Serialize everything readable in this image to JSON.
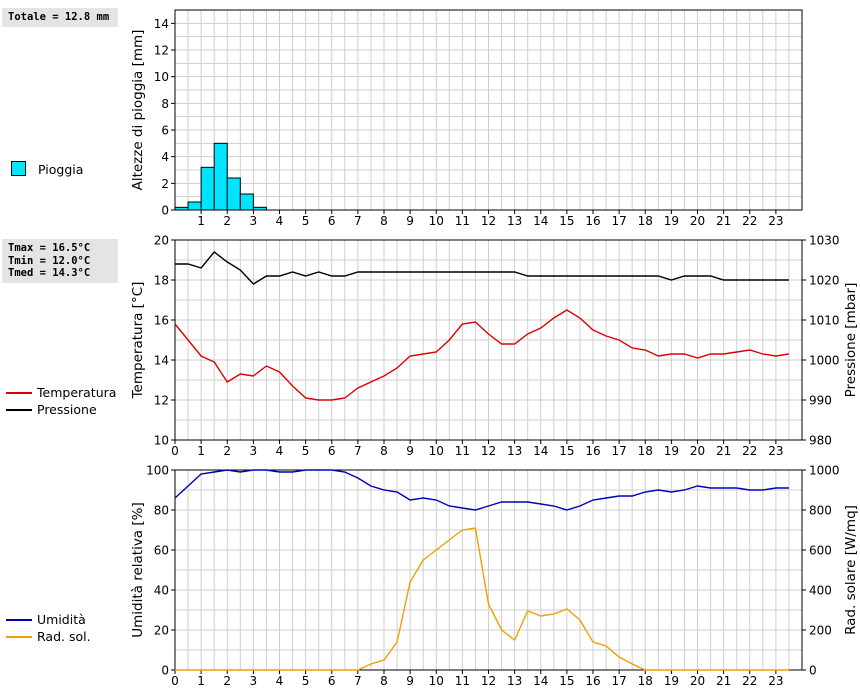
{
  "info": {
    "rain_total": "Totale = 12.8 mm",
    "tmax": "Tmax = 16.5°C",
    "tmin": "Tmin = 12.0°C",
    "tmed": "Tmed = 14.3°C"
  },
  "legend": {
    "rain": "Pioggia",
    "temperature": "Temperatura",
    "pressure": "Pressione",
    "humidity": "Umidità",
    "radiation": "Rad. sol."
  },
  "colors": {
    "rain_fill": "#00e5ff",
    "rain_border": "#000000",
    "temperature": "#dd0000",
    "pressure": "#000000",
    "humidity": "#0000bb",
    "radiation": "#f0a000",
    "grid": "#cfcfcf"
  },
  "chart_data": [
    {
      "type": "bar",
      "name": "rain",
      "ylabel": "Altezze di pioggia [mm]",
      "xlim": [
        0,
        24
      ],
      "ylim": [
        0,
        15
      ],
      "yticks": [
        0,
        2,
        4,
        6,
        8,
        10,
        12,
        14
      ],
      "xticks": [
        1,
        2,
        3,
        4,
        5,
        6,
        7,
        8,
        9,
        10,
        11,
        12,
        13,
        14,
        15,
        16,
        17,
        18,
        19,
        20,
        21,
        22,
        23
      ],
      "bar_width_hours": 0.5,
      "bars": [
        {
          "x": 0.0,
          "value": 0.2
        },
        {
          "x": 0.5,
          "value": 0.6
        },
        {
          "x": 1.0,
          "value": 3.2
        },
        {
          "x": 1.5,
          "value": 5.0
        },
        {
          "x": 2.0,
          "value": 2.4
        },
        {
          "x": 2.5,
          "value": 1.2
        },
        {
          "x": 3.0,
          "value": 0.2
        }
      ],
      "series_label": "Pioggia"
    },
    {
      "type": "line",
      "name": "temperature-pressure",
      "ylabel": "Temperatura [°C]",
      "ylabel_right": "Pressione [mbar]",
      "xlim": [
        0,
        24
      ],
      "ylim": [
        10,
        20
      ],
      "ylim_right": [
        980,
        1030
      ],
      "yticks": [
        10,
        12,
        14,
        16,
        18,
        20
      ],
      "yticks_right": [
        980,
        990,
        1000,
        1010,
        1020,
        1030
      ],
      "xticks": [
        0,
        1,
        2,
        3,
        4,
        5,
        6,
        7,
        8,
        9,
        10,
        11,
        12,
        13,
        14,
        15,
        16,
        17,
        18,
        19,
        20,
        21,
        22,
        23
      ],
      "series": [
        {
          "name": "Temperatura",
          "axis": "left",
          "x": [
            0,
            0.5,
            1,
            1.5,
            2,
            2.5,
            3,
            3.5,
            4,
            4.5,
            5,
            5.5,
            6,
            6.5,
            7,
            7.5,
            8,
            8.5,
            9,
            9.5,
            10,
            10.5,
            11,
            11.5,
            12,
            12.5,
            13,
            13.5,
            14,
            14.5,
            15,
            15.5,
            16,
            16.5,
            17,
            17.5,
            18,
            18.5,
            19,
            19.5,
            20,
            20.5,
            21,
            21.5,
            22,
            22.5,
            23,
            23.5
          ],
          "values": [
            15.8,
            15.0,
            14.2,
            13.9,
            12.9,
            13.3,
            13.2,
            13.7,
            13.4,
            12.7,
            12.1,
            12.0,
            12.0,
            12.1,
            12.6,
            12.9,
            13.2,
            13.6,
            14.2,
            14.3,
            14.4,
            15.0,
            15.8,
            15.9,
            15.3,
            14.8,
            14.8,
            15.3,
            15.6,
            16.1,
            16.5,
            16.1,
            15.5,
            15.2,
            15.0,
            14.6,
            14.5,
            14.2,
            14.3,
            14.3,
            14.1,
            14.3,
            14.3,
            14.4,
            14.5,
            14.3,
            14.2,
            14.3
          ]
        },
        {
          "name": "Pressione",
          "axis": "right",
          "x": [
            0,
            0.5,
            1,
            1.5,
            2,
            2.5,
            3,
            3.5,
            4,
            4.5,
            5,
            5.5,
            6,
            6.5,
            7,
            7.5,
            8,
            8.5,
            9,
            9.5,
            10,
            10.5,
            11,
            11.5,
            12,
            12.5,
            13,
            13.5,
            14,
            14.5,
            15,
            15.5,
            16,
            16.5,
            17,
            17.5,
            18,
            18.5,
            19,
            19.5,
            20,
            20.5,
            21,
            21.5,
            22,
            22.5,
            23,
            23.5
          ],
          "values": [
            1024,
            1024,
            1023,
            1027,
            1024.5,
            1022.5,
            1019,
            1021,
            1021,
            1022,
            1021,
            1022,
            1021,
            1021,
            1022,
            1022,
            1022,
            1022,
            1022,
            1022,
            1022,
            1022,
            1022,
            1022,
            1022,
            1022,
            1022,
            1021,
            1021,
            1021,
            1021,
            1021,
            1021,
            1021,
            1021,
            1021,
            1021,
            1021,
            1020,
            1021,
            1021,
            1021,
            1020,
            1020,
            1020,
            1020,
            1020,
            1020
          ]
        }
      ]
    },
    {
      "type": "line",
      "name": "humidity-radiation",
      "ylabel": "Umidità relativa [%]",
      "ylabel_right": "Rad. solare [W/mq]",
      "xlim": [
        0,
        24
      ],
      "ylim": [
        0,
        100
      ],
      "ylim_right": [
        0,
        1000
      ],
      "yticks": [
        0,
        20,
        40,
        60,
        80,
        100
      ],
      "yticks_right": [
        0,
        200,
        400,
        600,
        800,
        1000
      ],
      "xticks": [
        0,
        1,
        2,
        3,
        4,
        5,
        6,
        7,
        8,
        9,
        10,
        11,
        12,
        13,
        14,
        15,
        16,
        17,
        18,
        19,
        20,
        21,
        22,
        23
      ],
      "series": [
        {
          "name": "Umidità",
          "axis": "left",
          "x": [
            0,
            0.5,
            1,
            1.5,
            2,
            2.5,
            3,
            3.5,
            4,
            4.5,
            5,
            5.5,
            6,
            6.5,
            7,
            7.5,
            8,
            8.5,
            9,
            9.5,
            10,
            10.5,
            11,
            11.5,
            12,
            12.5,
            13,
            13.5,
            14,
            14.5,
            15,
            15.5,
            16,
            16.5,
            17,
            17.5,
            18,
            18.5,
            19,
            19.5,
            20,
            20.5,
            21,
            21.5,
            22,
            22.5,
            23,
            23.5
          ],
          "values": [
            86,
            92,
            98,
            99,
            100,
            99,
            100,
            100,
            99,
            99,
            100,
            100,
            100,
            99,
            96,
            92,
            90,
            89,
            85,
            86,
            85,
            82,
            81,
            80,
            82,
            84,
            84,
            84,
            83,
            82,
            80,
            82,
            85,
            86,
            87,
            87,
            89,
            90,
            89,
            90,
            92,
            91,
            91,
            91,
            90,
            90,
            91,
            91
          ]
        },
        {
          "name": "Rad. sol.",
          "axis": "right",
          "x": [
            0,
            0.5,
            1,
            1.5,
            2,
            2.5,
            3,
            3.5,
            4,
            4.5,
            5,
            5.5,
            6,
            6.5,
            7,
            7.5,
            8,
            8.5,
            9,
            9.5,
            10,
            10.5,
            11,
            11.5,
            12,
            12.5,
            13,
            13.5,
            14,
            14.5,
            15,
            15.5,
            16,
            16.5,
            17,
            17.5,
            18,
            18.5,
            19,
            19.5,
            20,
            20.5,
            21,
            21.5,
            22,
            22.5,
            23,
            23.5
          ],
          "values": [
            0,
            0,
            0,
            0,
            0,
            0,
            0,
            0,
            0,
            0,
            0,
            0,
            0,
            0,
            0,
            30,
            50,
            140,
            440,
            550,
            600,
            650,
            700,
            710,
            330,
            200,
            150,
            295,
            270,
            280,
            305,
            250,
            140,
            120,
            65,
            30,
            0,
            0,
            0,
            0,
            0,
            0,
            0,
            0,
            0,
            0,
            0,
            0
          ]
        }
      ]
    }
  ]
}
